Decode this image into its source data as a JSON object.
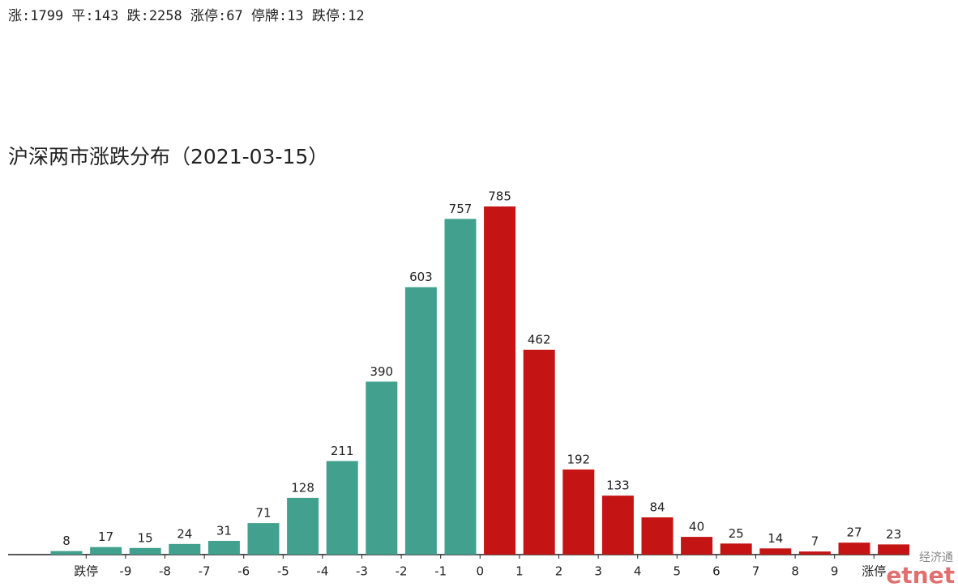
{
  "chart_data": {
    "type": "bar",
    "subtitle": "涨:1799 平:143 跌:2258 涨停:67 停牌:13 跌停:12",
    "title": "沪深两市涨跌分布（2021-03-15）",
    "edge_labels": [
      "跌停",
      "-9",
      "-8",
      "-7",
      "-6",
      "-5",
      "-4",
      "-3",
      "-2",
      "-1",
      "0",
      "1",
      "2",
      "3",
      "4",
      "5",
      "6",
      "7",
      "8",
      "9",
      "涨停"
    ],
    "values": [
      8,
      17,
      15,
      24,
      31,
      71,
      128,
      211,
      390,
      603,
      757,
      785,
      462,
      192,
      133,
      84,
      40,
      25,
      14,
      7,
      27,
      23
    ],
    "colors": [
      "#42a08e",
      "#42a08e",
      "#42a08e",
      "#42a08e",
      "#42a08e",
      "#42a08e",
      "#42a08e",
      "#42a08e",
      "#42a08e",
      "#42a08e",
      "#42a08e",
      "#c41414",
      "#c41414",
      "#c41414",
      "#c41414",
      "#c41414",
      "#c41414",
      "#c41414",
      "#c41414",
      "#c41414",
      "#c41414",
      "#c41414"
    ],
    "watermark": {
      "top": "经济通",
      "brand": "etnet"
    }
  }
}
